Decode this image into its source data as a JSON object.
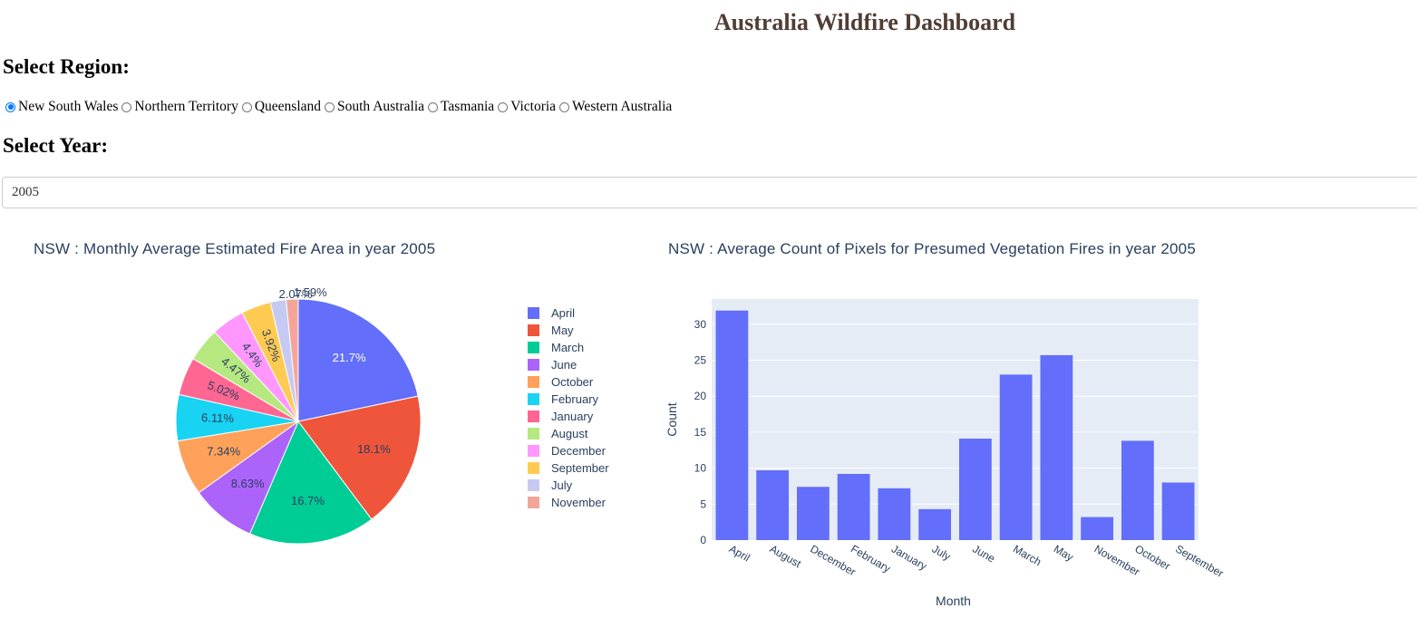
{
  "header": {
    "title": "Australia Wildfire Dashboard"
  },
  "region": {
    "label": "Select Region:",
    "options": [
      "New South Wales",
      "Northern Territory",
      "Queensland",
      "South Australia",
      "Tasmania",
      "Victoria",
      "Western Australia"
    ],
    "selected": "New South Wales"
  },
  "year": {
    "label": "Select Year:",
    "value": "2005"
  },
  "colors": {
    "title": "#503d36",
    "radio_accent": "#0075ff",
    "plot_bg": "#e5ecf6",
    "bar": "#636efa",
    "chart_text": "#2a3f5f"
  },
  "chart_data": [
    {
      "type": "pie",
      "title": "NSW : Monthly Average Estimated Fire Area in year 2005",
      "legend_placement": "right",
      "slices": [
        {
          "label": "April",
          "percent": 21.7,
          "color": "#636efa"
        },
        {
          "label": "May",
          "percent": 18.1,
          "color": "#ef553b"
        },
        {
          "label": "March",
          "percent": 16.7,
          "color": "#00cc96"
        },
        {
          "label": "June",
          "percent": 8.63,
          "color": "#ab63fa"
        },
        {
          "label": "October",
          "percent": 7.34,
          "color": "#ffa15a"
        },
        {
          "label": "February",
          "percent": 6.11,
          "color": "#19d3f3"
        },
        {
          "label": "January",
          "percent": 5.02,
          "color": "#ff6692"
        },
        {
          "label": "August",
          "percent": 4.47,
          "color": "#b6e880"
        },
        {
          "label": "December",
          "percent": 4.4,
          "color": "#ff97ff"
        },
        {
          "label": "September",
          "percent": 3.92,
          "color": "#fecb52"
        },
        {
          "label": "July",
          "percent": 2.07,
          "color": "#c6caf3"
        },
        {
          "label": "November",
          "percent": 1.59,
          "color": "#f4a59a"
        }
      ]
    },
    {
      "type": "bar",
      "title": "NSW : Average Count of Pixels for Presumed Vegetation Fires in year 2005",
      "xlabel": "Month",
      "ylabel": "Count",
      "ylim": [
        0,
        33.5
      ],
      "yticks": [
        0,
        5,
        10,
        15,
        20,
        25,
        30
      ],
      "grid": true,
      "categories": [
        "April",
        "August",
        "December",
        "February",
        "January",
        "July",
        "June",
        "March",
        "May",
        "November",
        "October",
        "September"
      ],
      "values": [
        31.9,
        9.7,
        7.4,
        9.2,
        7.2,
        4.3,
        14.1,
        23.0,
        25.7,
        3.2,
        13.8,
        8.0
      ]
    }
  ]
}
